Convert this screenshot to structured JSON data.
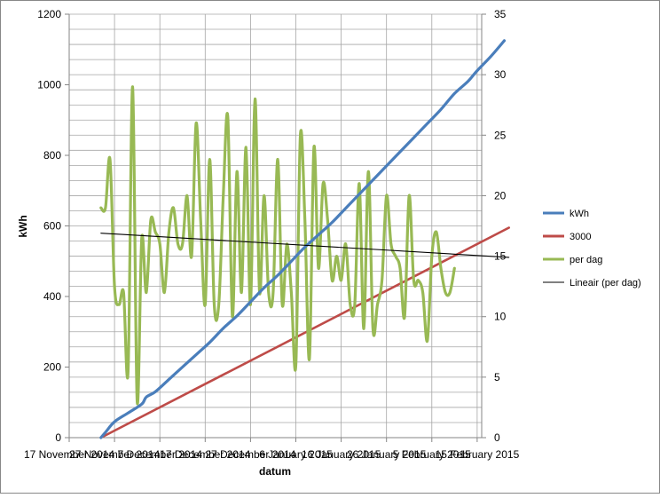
{
  "chart_data": {
    "type": "line",
    "title": "",
    "xlabel": "datum",
    "ylabel": "kWh",
    "y_left": {
      "min": 0,
      "max": 1200,
      "step": 200,
      "ticks": [
        "0",
        "200",
        "400",
        "600",
        "800",
        "1000",
        "1200"
      ]
    },
    "y_right": {
      "min": 0,
      "max": 35,
      "step": 5,
      "ticks": [
        "0",
        "5",
        "10",
        "15",
        "20",
        "25",
        "30",
        "35"
      ]
    },
    "x_range": {
      "start": "2014-11-17",
      "end": "2015-02-16"
    },
    "x_tick_labels": [
      "17 November 2014",
      "27 November 2014",
      "7 December 2014",
      "17 December 2014",
      "27 December 2014",
      "6 January 2015",
      "16 January 2015",
      "26 January 2015",
      "5 February 2015",
      "15 February 2015"
    ],
    "grid": {
      "horizontal": true,
      "vertical": true
    },
    "legend": "right",
    "series": [
      {
        "name": "kWh",
        "axis": "left",
        "color": "#4a7ebb",
        "points": [
          [
            "2014-11-24",
            0
          ],
          [
            "2014-11-25",
            15
          ],
          [
            "2014-11-27",
            45
          ],
          [
            "2014-11-30",
            70
          ],
          [
            "2014-12-03",
            95
          ],
          [
            "2014-12-04",
            115
          ],
          [
            "2014-12-06",
            130
          ],
          [
            "2014-12-09",
            165
          ],
          [
            "2014-12-12",
            200
          ],
          [
            "2014-12-15",
            235
          ],
          [
            "2014-12-18",
            270
          ],
          [
            "2014-12-21",
            310
          ],
          [
            "2014-12-24",
            345
          ],
          [
            "2014-12-27",
            385
          ],
          [
            "2014-12-30",
            425
          ],
          [
            "2015-01-02",
            460
          ],
          [
            "2015-01-05",
            500
          ],
          [
            "2015-01-08",
            540
          ],
          [
            "2015-01-11",
            575
          ],
          [
            "2015-01-14",
            610
          ],
          [
            "2015-01-17",
            650
          ],
          [
            "2015-01-20",
            690
          ],
          [
            "2015-01-23",
            730
          ],
          [
            "2015-01-26",
            770
          ],
          [
            "2015-01-29",
            810
          ],
          [
            "2015-02-01",
            850
          ],
          [
            "2015-02-04",
            890
          ],
          [
            "2015-02-07",
            930
          ],
          [
            "2015-02-10",
            975
          ],
          [
            "2015-02-13",
            1010
          ],
          [
            "2015-02-15",
            1040
          ],
          [
            "2015-02-18",
            1080
          ],
          [
            "2015-02-21",
            1125
          ]
        ]
      },
      {
        "name": "3000",
        "axis": "left",
        "color": "#be4b48",
        "points": [
          [
            "2014-11-24",
            0
          ],
          [
            "2015-02-22",
            595
          ]
        ]
      },
      {
        "name": "per dag",
        "axis": "right",
        "color": "#98b954",
        "points": [
          [
            "2014-11-24",
            19
          ],
          [
            "2014-11-25",
            19
          ],
          [
            "2014-11-26",
            23
          ],
          [
            "2014-11-27",
            12.5
          ],
          [
            "2014-11-28",
            11
          ],
          [
            "2014-11-29",
            12
          ],
          [
            "2014-11-30",
            5.5
          ],
          [
            "2014-12-01",
            29
          ],
          [
            "2014-12-02",
            3
          ],
          [
            "2014-12-03",
            16.5
          ],
          [
            "2014-12-04",
            12
          ],
          [
            "2014-12-05",
            18
          ],
          [
            "2014-12-06",
            17
          ],
          [
            "2014-12-07",
            16
          ],
          [
            "2014-12-08",
            12
          ],
          [
            "2014-12-09",
            17
          ],
          [
            "2014-12-10",
            19
          ],
          [
            "2014-12-11",
            16
          ],
          [
            "2014-12-12",
            16
          ],
          [
            "2014-12-13",
            20
          ],
          [
            "2014-12-14",
            15
          ],
          [
            "2014-12-15",
            26
          ],
          [
            "2014-12-16",
            18
          ],
          [
            "2014-12-17",
            11
          ],
          [
            "2014-12-18",
            23
          ],
          [
            "2014-12-19",
            11
          ],
          [
            "2014-12-20",
            11
          ],
          [
            "2014-12-21",
            20
          ],
          [
            "2014-12-22",
            26.5
          ],
          [
            "2014-12-23",
            10
          ],
          [
            "2014-12-24",
            22
          ],
          [
            "2014-12-25",
            12
          ],
          [
            "2014-12-26",
            24
          ],
          [
            "2014-12-27",
            11
          ],
          [
            "2014-12-28",
            28
          ],
          [
            "2014-12-29",
            12
          ],
          [
            "2014-12-30",
            20
          ],
          [
            "2014-12-31",
            12
          ],
          [
            "2015-01-01",
            12
          ],
          [
            "2015-01-02",
            23
          ],
          [
            "2015-01-03",
            11
          ],
          [
            "2015-01-04",
            16
          ],
          [
            "2015-01-05",
            12
          ],
          [
            "2015-01-06",
            6
          ],
          [
            "2015-01-07",
            25
          ],
          [
            "2015-01-08",
            18
          ],
          [
            "2015-01-09",
            6.5
          ],
          [
            "2015-01-10",
            24
          ],
          [
            "2015-01-11",
            14
          ],
          [
            "2015-01-12",
            21
          ],
          [
            "2015-01-13",
            18
          ],
          [
            "2015-01-14",
            13
          ],
          [
            "2015-01-15",
            15
          ],
          [
            "2015-01-16",
            13
          ],
          [
            "2015-01-17",
            16
          ],
          [
            "2015-01-18",
            11
          ],
          [
            "2015-01-19",
            11
          ],
          [
            "2015-01-20",
            21
          ],
          [
            "2015-01-21",
            9
          ],
          [
            "2015-01-22",
            22
          ],
          [
            "2015-01-23",
            9
          ],
          [
            "2015-01-24",
            11
          ],
          [
            "2015-01-25",
            13
          ],
          [
            "2015-01-26",
            20
          ],
          [
            "2015-01-27",
            16
          ],
          [
            "2015-01-28",
            15
          ],
          [
            "2015-01-29",
            14
          ],
          [
            "2015-01-30",
            10
          ],
          [
            "2015-01-31",
            20
          ],
          [
            "2015-02-01",
            13
          ],
          [
            "2015-02-02",
            13
          ],
          [
            "2015-02-03",
            12
          ],
          [
            "2015-02-04",
            8
          ],
          [
            "2015-02-05",
            15
          ],
          [
            "2015-02-06",
            17
          ],
          [
            "2015-02-07",
            14
          ],
          [
            "2015-02-08",
            12
          ],
          [
            "2015-02-09",
            12
          ],
          [
            "2015-02-10",
            14
          ]
        ]
      },
      {
        "name": "Lineair (per dag)",
        "axis": "right",
        "color": "#000000",
        "points": [
          [
            "2014-11-24",
            16.9
          ],
          [
            "2015-02-22",
            14.9
          ]
        ]
      }
    ]
  }
}
